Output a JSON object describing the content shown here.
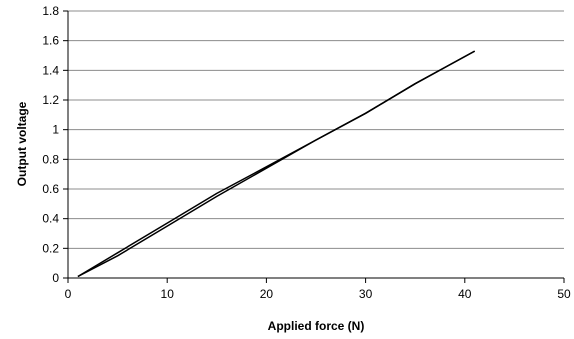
{
  "chart_data": {
    "type": "line",
    "title": "",
    "xlabel": "Applied force (N)",
    "ylabel": "Output voltage",
    "xlim": [
      0,
      50
    ],
    "ylim": [
      0,
      1.8
    ],
    "x_ticks": [
      "0",
      "10",
      "20",
      "30",
      "40",
      "50"
    ],
    "y_ticks": [
      "0",
      "0.2",
      "0.4",
      "0.6",
      "0.8",
      "1",
      "1.2",
      "1.4",
      "1.6",
      "1.8"
    ],
    "grid": "horizontal",
    "legend": "none",
    "series": [
      {
        "x": [
          1,
          5,
          10,
          15,
          20,
          25,
          30,
          35,
          38,
          41
        ],
        "y": [
          0.01,
          0.17,
          0.37,
          0.57,
          0.75,
          0.93,
          1.11,
          1.31,
          1.42,
          1.53
        ]
      },
      {
        "x": [
          1,
          5,
          10,
          15,
          20,
          25,
          30,
          35,
          38,
          41
        ],
        "y": [
          0.01,
          0.15,
          0.35,
          0.55,
          0.74,
          0.93,
          1.11,
          1.31,
          1.42,
          1.53
        ]
      }
    ]
  }
}
